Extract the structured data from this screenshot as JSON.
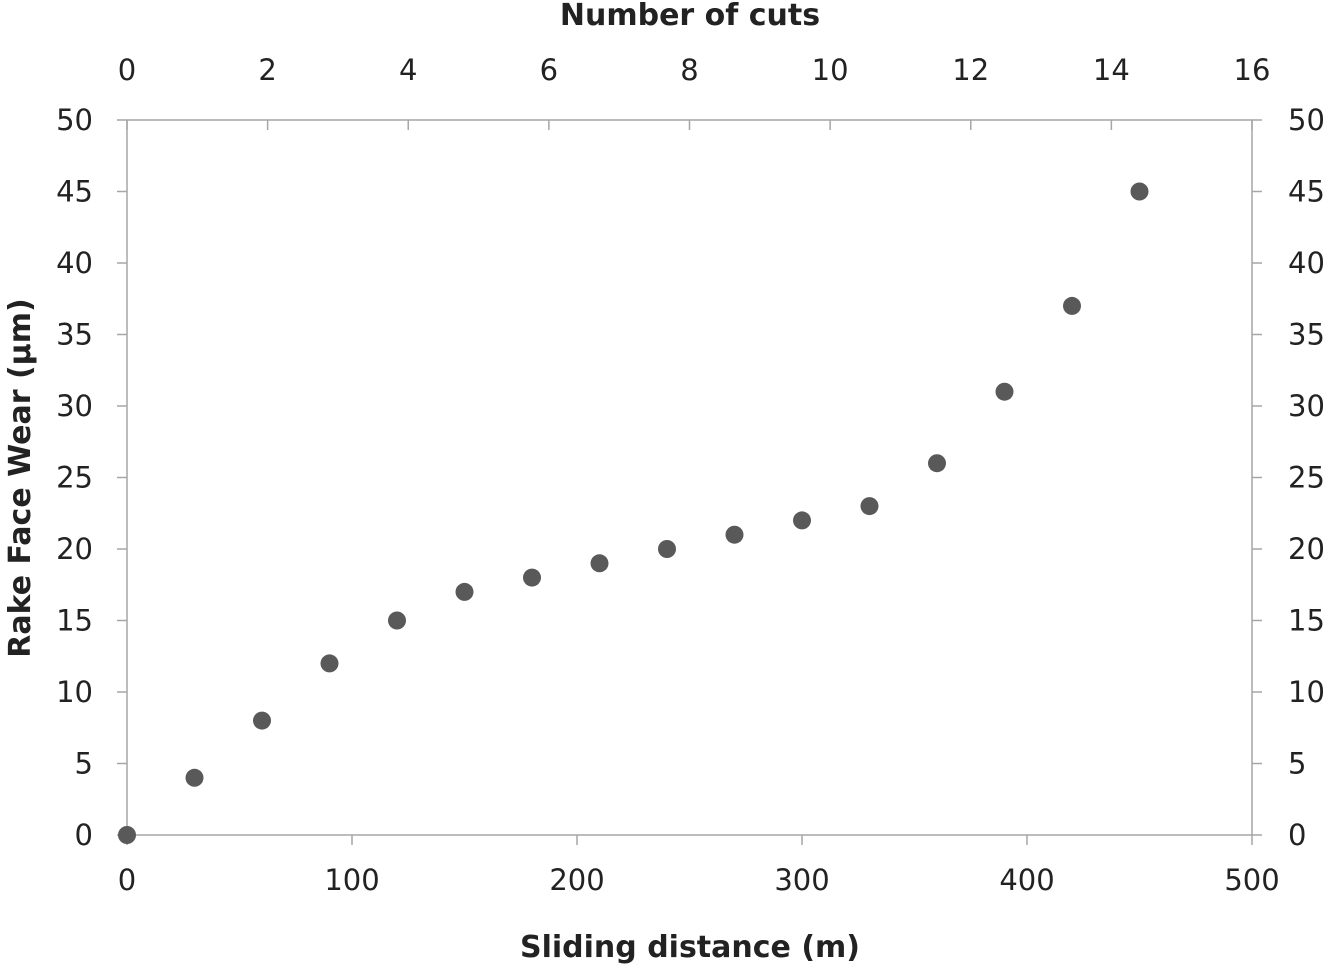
{
  "chart_data": {
    "type": "scatter",
    "xlabel": "Sliding distance (m)",
    "x2label": "Number of cuts",
    "ylabel": "Rake Face Wear (µm)",
    "xlim": [
      0,
      500
    ],
    "x2lim": [
      0,
      16
    ],
    "ylim": [
      0,
      50
    ],
    "xticks": [
      0,
      100,
      200,
      300,
      400,
      500
    ],
    "x2ticks": [
      0,
      2,
      4,
      6,
      8,
      10,
      12,
      14,
      16
    ],
    "yticks": [
      0,
      5,
      10,
      15,
      20,
      25,
      30,
      35,
      40,
      45,
      50
    ],
    "y2ticks": [
      0,
      5,
      10,
      15,
      20,
      25,
      30,
      35,
      40,
      45,
      50
    ],
    "grid": false,
    "marker_color": "#595959",
    "axis_color": "#a6a6a6",
    "x": [
      0,
      30,
      60,
      90,
      120,
      150,
      180,
      210,
      240,
      270,
      300,
      330,
      360,
      390,
      420,
      450
    ],
    "y": [
      0,
      4,
      8,
      12,
      15,
      17,
      18,
      19,
      20,
      21,
      22,
      23,
      26,
      31,
      37,
      45
    ]
  }
}
